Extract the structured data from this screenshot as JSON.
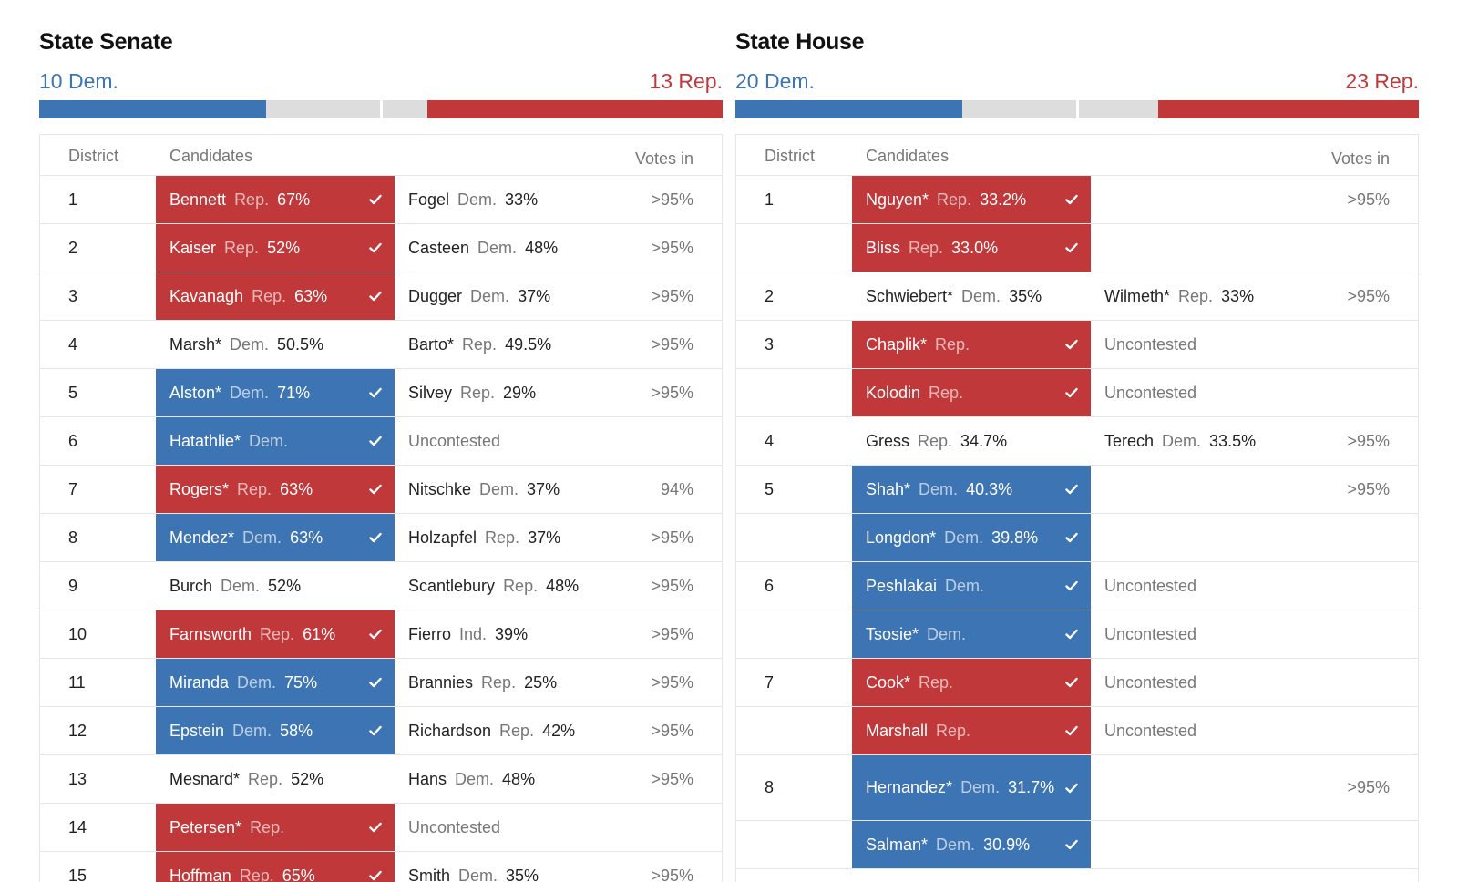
{
  "senate": {
    "title": "State Senate",
    "dem_label": "10 Dem.",
    "rep_label": "13 Rep.",
    "seats": {
      "total": 30,
      "dem_won": 10,
      "dem_lean": 5,
      "rep_lean": 2,
      "rep_won": 13
    },
    "headers": {
      "district": "District",
      "candidates": "Candidates",
      "votes": "Votes in"
    },
    "rows": [
      {
        "district": "1",
        "c1": {
          "name": "Bennett",
          "party": "Rep.",
          "pct": "67%",
          "win": "R"
        },
        "c2": {
          "name": "Fogel",
          "party": "Dem.",
          "pct": "33%"
        },
        "votes": ">95%"
      },
      {
        "district": "2",
        "c1": {
          "name": "Kaiser",
          "party": "Rep.",
          "pct": "52%",
          "win": "R"
        },
        "c2": {
          "name": "Casteen",
          "party": "Dem.",
          "pct": "48%"
        },
        "votes": ">95%"
      },
      {
        "district": "3",
        "c1": {
          "name": "Kavanagh",
          "party": "Rep.",
          "pct": "63%",
          "win": "R"
        },
        "c2": {
          "name": "Dugger",
          "party": "Dem.",
          "pct": "37%"
        },
        "votes": ">95%"
      },
      {
        "district": "4",
        "c1": {
          "name": "Marsh*",
          "party": "Dem.",
          "pct": "50.5%"
        },
        "c2": {
          "name": "Barto*",
          "party": "Rep.",
          "pct": "49.5%"
        },
        "votes": ">95%"
      },
      {
        "district": "5",
        "c1": {
          "name": "Alston*",
          "party": "Dem.",
          "pct": "71%",
          "win": "D"
        },
        "c2": {
          "name": "Silvey",
          "party": "Rep.",
          "pct": "29%"
        },
        "votes": ">95%"
      },
      {
        "district": "6",
        "c1": {
          "name": "Hatathlie*",
          "party": "Dem.",
          "win": "D"
        },
        "c2": {
          "status": "Uncontested"
        }
      },
      {
        "district": "7",
        "c1": {
          "name": "Rogers*",
          "party": "Rep.",
          "pct": "63%",
          "win": "R"
        },
        "c2": {
          "name": "Nitschke",
          "party": "Dem.",
          "pct": "37%"
        },
        "votes": "94%"
      },
      {
        "district": "8",
        "c1": {
          "name": "Mendez*",
          "party": "Dem.",
          "pct": "63%",
          "win": "D"
        },
        "c2": {
          "name": "Holzapfel",
          "party": "Rep.",
          "pct": "37%"
        },
        "votes": ">95%"
      },
      {
        "district": "9",
        "c1": {
          "name": "Burch",
          "party": "Dem.",
          "pct": "52%"
        },
        "c2": {
          "name": "Scantlebury",
          "party": "Rep.",
          "pct": "48%"
        },
        "votes": ">95%"
      },
      {
        "district": "10",
        "c1": {
          "name": "Farnsworth",
          "party": "Rep.",
          "pct": "61%",
          "win": "R"
        },
        "c2": {
          "name": "Fierro",
          "party": "Ind.",
          "pct": "39%"
        },
        "votes": ">95%"
      },
      {
        "district": "11",
        "c1": {
          "name": "Miranda",
          "party": "Dem.",
          "pct": "75%",
          "win": "D"
        },
        "c2": {
          "name": "Brannies",
          "party": "Rep.",
          "pct": "25%"
        },
        "votes": ">95%"
      },
      {
        "district": "12",
        "c1": {
          "name": "Epstein",
          "party": "Dem.",
          "pct": "58%",
          "win": "D"
        },
        "c2": {
          "name": "Richardson",
          "party": "Rep.",
          "pct": "42%"
        },
        "votes": ">95%"
      },
      {
        "district": "13",
        "c1": {
          "name": "Mesnard*",
          "party": "Rep.",
          "pct": "52%"
        },
        "c2": {
          "name": "Hans",
          "party": "Dem.",
          "pct": "48%"
        },
        "votes": ">95%"
      },
      {
        "district": "14",
        "c1": {
          "name": "Petersen*",
          "party": "Rep.",
          "win": "R"
        },
        "c2": {
          "status": "Uncontested"
        }
      },
      {
        "district": "15",
        "c1": {
          "name": "Hoffman",
          "party": "Rep.",
          "pct": "65%",
          "win": "R"
        },
        "c2": {
          "name": "Smith",
          "party": "Dem.",
          "pct": "35%"
        },
        "votes": ">95%"
      }
    ]
  },
  "house": {
    "title": "State House",
    "dem_label": "20 Dem.",
    "rep_label": "23 Rep.",
    "seats": {
      "total": 60,
      "dem_won": 20,
      "dem_lean": 10,
      "rep_lean": 7,
      "rep_won": 23
    },
    "headers": {
      "district": "District",
      "candidates": "Candidates",
      "votes": "Votes in"
    },
    "rows": [
      {
        "district": "1",
        "c1": {
          "name": "Nguyen*",
          "party": "Rep.",
          "pct": "33.2%",
          "win": "R"
        },
        "votes": ">95%"
      },
      {
        "c1": {
          "name": "Bliss",
          "party": "Rep.",
          "pct": "33.0%",
          "win": "R"
        }
      },
      {
        "district": "2",
        "c1": {
          "name": "Schwiebert*",
          "party": "Dem.",
          "pct": "35%"
        },
        "c2": {
          "name": "Wilmeth*",
          "party": "Rep.",
          "pct": "33%"
        },
        "votes": ">95%"
      },
      {
        "district": "3",
        "c1": {
          "name": "Chaplik*",
          "party": "Rep.",
          "win": "R"
        },
        "c2": {
          "status": "Uncontested"
        }
      },
      {
        "c1": {
          "name": "Kolodin",
          "party": "Rep.",
          "win": "R"
        },
        "c2": {
          "status": "Uncontested"
        }
      },
      {
        "district": "4",
        "c1": {
          "name": "Gress",
          "party": "Rep.",
          "pct": "34.7%"
        },
        "c2": {
          "name": "Terech",
          "party": "Dem.",
          "pct": "33.5%"
        },
        "votes": ">95%"
      },
      {
        "district": "5",
        "c1": {
          "name": "Shah*",
          "party": "Dem.",
          "pct": "40.3%",
          "win": "D"
        },
        "votes": ">95%"
      },
      {
        "c1": {
          "name": "Longdon*",
          "party": "Dem.",
          "pct": "39.8%",
          "win": "D"
        }
      },
      {
        "district": "6",
        "c1": {
          "name": "Peshlakai",
          "party": "Dem.",
          "win": "D"
        },
        "c2": {
          "status": "Uncontested"
        }
      },
      {
        "c1": {
          "name": "Tsosie*",
          "party": "Dem.",
          "win": "D"
        },
        "c2": {
          "status": "Uncontested"
        }
      },
      {
        "district": "7",
        "c1": {
          "name": "Cook*",
          "party": "Rep.",
          "win": "R"
        },
        "c2": {
          "status": "Uncontested"
        }
      },
      {
        "c1": {
          "name": "Marshall",
          "party": "Rep.",
          "win": "R"
        },
        "c2": {
          "status": "Uncontested"
        }
      },
      {
        "district": "8",
        "tall": true,
        "c1": {
          "name": "Hernandez*",
          "party": "Dem.",
          "pct": "31.7%",
          "win": "D"
        },
        "votes": ">95%"
      },
      {
        "c1": {
          "name": "Salman*",
          "party": "Dem.",
          "pct": "30.9%",
          "win": "D"
        }
      }
    ]
  },
  "colors": {
    "dem": "#3d74b3",
    "rep": "#c1383a",
    "neutral": "#dddddd"
  },
  "icons": {
    "winner": "check-icon"
  }
}
